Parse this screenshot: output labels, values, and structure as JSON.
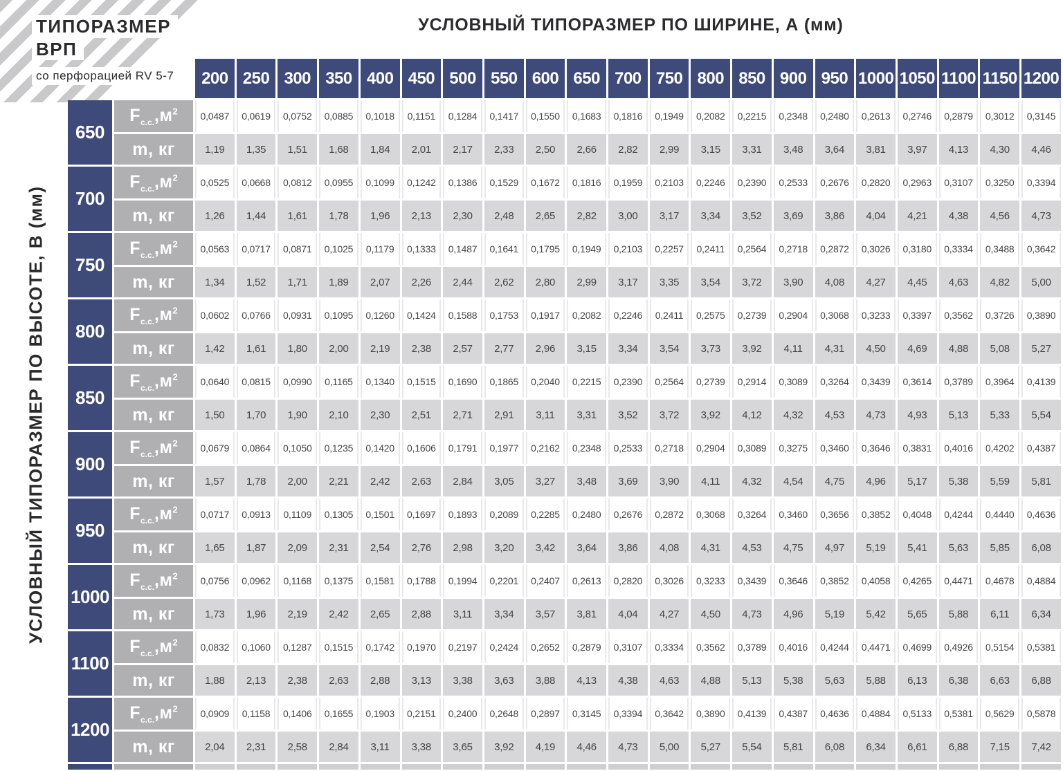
{
  "header": {
    "title": "УСЛОВНЫЙ ТИПОРАЗМЕР ПО ШИРИНЕ, А (мм)"
  },
  "corner": {
    "title_line1": "ТИПОРАЗМЕР",
    "title_line2": "ВРП",
    "subtitle": "со перфорацией RV 5-7"
  },
  "left_axis": {
    "label": "УСЛОВНЫЙ ТИПОРАЗМЕР ПО ВЫСОТЕ, В (мм)"
  },
  "row_metric_labels": {
    "area": {
      "symbol": "F",
      "subscript": "с.с.",
      "unit_prefix": ",м",
      "unit_exponent": "2"
    },
    "mass": "m, кг"
  },
  "columns": [
    "200",
    "250",
    "300",
    "350",
    "400",
    "450",
    "500",
    "550",
    "600",
    "650",
    "700",
    "750",
    "800",
    "850",
    "900",
    "950",
    "1000",
    "1050",
    "1100",
    "1150",
    "1200"
  ],
  "rows": [
    {
      "height": "650",
      "f": [
        "0,0487",
        "0,0619",
        "0,0752",
        "0,0885",
        "0,1018",
        "0,1151",
        "0,1284",
        "0,1417",
        "0,1550",
        "0,1683",
        "0,1816",
        "0,1949",
        "0,2082",
        "0,2215",
        "0,2348",
        "0,2480",
        "0,2613",
        "0,2746",
        "0,2879",
        "0,3012",
        "0,3145"
      ],
      "m": [
        "1,19",
        "1,35",
        "1,51",
        "1,68",
        "1,84",
        "2,01",
        "2,17",
        "2,33",
        "2,50",
        "2,66",
        "2,82",
        "2,99",
        "3,15",
        "3,31",
        "3,48",
        "3,64",
        "3,81",
        "3,97",
        "4,13",
        "4,30",
        "4,46"
      ]
    },
    {
      "height": "700",
      "f": [
        "0,0525",
        "0,0668",
        "0,0812",
        "0,0955",
        "0,1099",
        "0,1242",
        "0,1386",
        "0,1529",
        "0,1672",
        "0,1816",
        "0,1959",
        "0,2103",
        "0,2246",
        "0,2390",
        "0,2533",
        "0,2676",
        "0,2820",
        "0,2963",
        "0,3107",
        "0,3250",
        "0,3394"
      ],
      "m": [
        "1,26",
        "1,44",
        "1,61",
        "1,78",
        "1,96",
        "2,13",
        "2,30",
        "2,48",
        "2,65",
        "2,82",
        "3,00",
        "3,17",
        "3,34",
        "3,52",
        "3,69",
        "3,86",
        "4,04",
        "4,21",
        "4,38",
        "4,56",
        "4,73"
      ]
    },
    {
      "height": "750",
      "f": [
        "0,0563",
        "0,0717",
        "0,0871",
        "0,1025",
        "0,1179",
        "0,1333",
        "0,1487",
        "0,1641",
        "0,1795",
        "0,1949",
        "0,2103",
        "0,2257",
        "0,2411",
        "0,2564",
        "0,2718",
        "0,2872",
        "0,3026",
        "0,3180",
        "0,3334",
        "0,3488",
        "0,3642"
      ],
      "m": [
        "1,34",
        "1,52",
        "1,71",
        "1,89",
        "2,07",
        "2,26",
        "2,44",
        "2,62",
        "2,80",
        "2,99",
        "3,17",
        "3,35",
        "3,54",
        "3,72",
        "3,90",
        "4,08",
        "4,27",
        "4,45",
        "4,63",
        "4,82",
        "5,00"
      ]
    },
    {
      "height": "800",
      "f": [
        "0,0602",
        "0,0766",
        "0,0931",
        "0,1095",
        "0,1260",
        "0,1424",
        "0,1588",
        "0,1753",
        "0,1917",
        "0,2082",
        "0,2246",
        "0,2411",
        "0,2575",
        "0,2739",
        "0,2904",
        "0,3068",
        "0,3233",
        "0,3397",
        "0,3562",
        "0,3726",
        "0,3890"
      ],
      "m": [
        "1,42",
        "1,61",
        "1,80",
        "2,00",
        "2,19",
        "2,38",
        "2,57",
        "2,77",
        "2,96",
        "3,15",
        "3,34",
        "3,54",
        "3,73",
        "3,92",
        "4,11",
        "4,31",
        "4,50",
        "4,69",
        "4,88",
        "5,08",
        "5,27"
      ]
    },
    {
      "height": "850",
      "f": [
        "0,0640",
        "0,0815",
        "0,0990",
        "0,1165",
        "0,1340",
        "0,1515",
        "0,1690",
        "0,1865",
        "0,2040",
        "0,2215",
        "0,2390",
        "0,2564",
        "0,2739",
        "0,2914",
        "0,3089",
        "0,3264",
        "0,3439",
        "0,3614",
        "0,3789",
        "0,3964",
        "0,4139"
      ],
      "m": [
        "1,50",
        "1,70",
        "1,90",
        "2,10",
        "2,30",
        "2,51",
        "2,71",
        "2,91",
        "3,11",
        "3,31",
        "3,52",
        "3,72",
        "3,92",
        "4,12",
        "4,32",
        "4,53",
        "4,73",
        "4,93",
        "5,13",
        "5,33",
        "5,54"
      ]
    },
    {
      "height": "900",
      "f": [
        "0,0679",
        "0,0864",
        "0,1050",
        "0,1235",
        "0,1420",
        "0,1606",
        "0,1791",
        "0,1977",
        "0,2162",
        "0,2348",
        "0,2533",
        "0,2718",
        "0,2904",
        "0,3089",
        "0,3275",
        "0,3460",
        "0,3646",
        "0,3831",
        "0,4016",
        "0,4202",
        "0,4387"
      ],
      "m": [
        "1,57",
        "1,78",
        "2,00",
        "2,21",
        "2,42",
        "2,63",
        "2,84",
        "3,05",
        "3,27",
        "3,48",
        "3,69",
        "3,90",
        "4,11",
        "4,32",
        "4,54",
        "4,75",
        "4,96",
        "5,17",
        "5,38",
        "5,59",
        "5,81"
      ]
    },
    {
      "height": "950",
      "f": [
        "0,0717",
        "0,0913",
        "0,1109",
        "0,1305",
        "0,1501",
        "0,1697",
        "0,1893",
        "0,2089",
        "0,2285",
        "0,2480",
        "0,2676",
        "0,2872",
        "0,3068",
        "0,3264",
        "0,3460",
        "0,3656",
        "0,3852",
        "0,4048",
        "0,4244",
        "0,4440",
        "0,4636"
      ],
      "m": [
        "1,65",
        "1,87",
        "2,09",
        "2,31",
        "2,54",
        "2,76",
        "2,98",
        "3,20",
        "3,42",
        "3,64",
        "3,86",
        "4,08",
        "4,31",
        "4,53",
        "4,75",
        "4,97",
        "5,19",
        "5,41",
        "5,63",
        "5,85",
        "6,08"
      ]
    },
    {
      "height": "1000",
      "f": [
        "0,0756",
        "0,0962",
        "0,1168",
        "0,1375",
        "0,1581",
        "0,1788",
        "0,1994",
        "0,2201",
        "0,2407",
        "0,2613",
        "0,2820",
        "0,3026",
        "0,3233",
        "0,3439",
        "0,3646",
        "0,3852",
        "0,4058",
        "0,4265",
        "0,4471",
        "0,4678",
        "0,4884"
      ],
      "m": [
        "1,73",
        "1,96",
        "2,19",
        "2,42",
        "2,65",
        "2,88",
        "3,11",
        "3,34",
        "3,57",
        "3,81",
        "4,04",
        "4,27",
        "4,50",
        "4,73",
        "4,96",
        "5,19",
        "5,42",
        "5,65",
        "5,88",
        "6,11",
        "6,34"
      ]
    },
    {
      "height": "1100",
      "f": [
        "0,0832",
        "0,1060",
        "0,1287",
        "0,1515",
        "0,1742",
        "0,1970",
        "0,2197",
        "0,2424",
        "0,2652",
        "0,2879",
        "0,3107",
        "0,3334",
        "0,3562",
        "0,3789",
        "0,4016",
        "0,4244",
        "0,4471",
        "0,4699",
        "0,4926",
        "0,5154",
        "0,5381"
      ],
      "m": [
        "1,88",
        "2,13",
        "2,38",
        "2,63",
        "2,88",
        "3,13",
        "3,38",
        "3,63",
        "3,88",
        "4,13",
        "4,38",
        "4,63",
        "4,88",
        "5,13",
        "5,38",
        "5,63",
        "5,88",
        "6,13",
        "6,38",
        "6,63",
        "6,88"
      ]
    },
    {
      "height": "1200",
      "f": [
        "0,0909",
        "0,1158",
        "0,1406",
        "0,1655",
        "0,1903",
        "0,2151",
        "0,2400",
        "0,2648",
        "0,2897",
        "0,3145",
        "0,3394",
        "0,3642",
        "0,3890",
        "0,4139",
        "0,4387",
        "0,4636",
        "0,4884",
        "0,5133",
        "0,5381",
        "0,5629",
        "0,5878"
      ],
      "m": [
        "2,04",
        "2,31",
        "2,58",
        "2,84",
        "3,11",
        "3,38",
        "3,65",
        "3,92",
        "4,19",
        "4,46",
        "4,73",
        "5,00",
        "5,27",
        "5,54",
        "5,81",
        "6,08",
        "6,34",
        "6,61",
        "6,88",
        "7,15",
        "7,42"
      ]
    }
  ],
  "colors": {
    "navy": "#3e4a7a",
    "label_gray": "#b0b0b3",
    "mass_row_gray": "#d7d7d9",
    "stripe_gray": "#c9c9cc",
    "data_text": "#454548",
    "dark_text": "#2b2b2e"
  }
}
